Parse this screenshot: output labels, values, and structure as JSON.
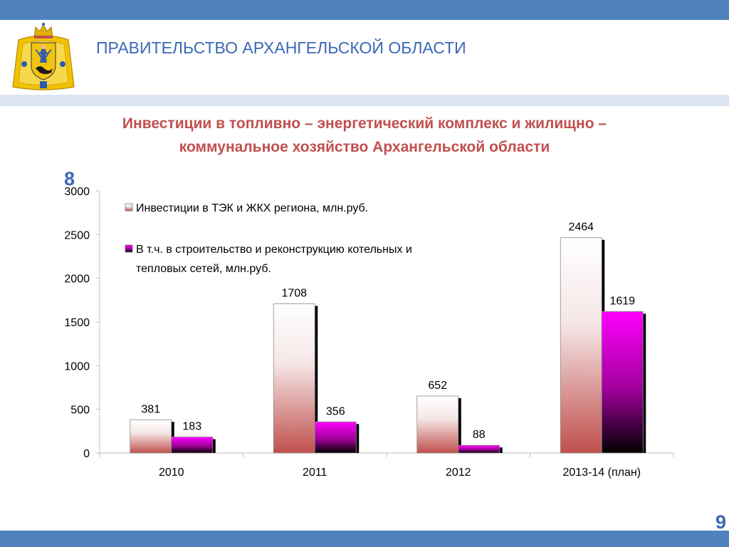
{
  "header": {
    "organization": "ПРАВИТЕЛЬСТВО АРХАНГЕЛЬСКОЙ ОБЛАСТИ",
    "emblem_icon": "coat-of-arms-icon"
  },
  "title": {
    "line1": "Инвестиции в топливно – энергетический комплекс и жилищно –",
    "line2": "коммунальное хозяйство Архангельской области"
  },
  "overlay_number": "8",
  "page_number": "9",
  "colors": {
    "top_bar": "#4f81bd",
    "band": "#dbe5f1",
    "title": "#c0504d",
    "org": "#3c68b7",
    "series1_top": "#ffffff",
    "series1_bottom": "#c0504d",
    "series2_top": "#ff00ff",
    "series2_bottom": "#000000"
  },
  "chart_data": {
    "type": "bar",
    "categories": [
      "2010",
      "2011",
      "2012",
      "2013-14 (план)"
    ],
    "series": [
      {
        "name": "Инвестиции в ТЭК и ЖКХ региона, млн.руб.",
        "values": [
          381,
          1708,
          652,
          2464
        ]
      },
      {
        "name": "В т.ч. в строительство и реконструкцию котельных и тепловых сетей, млн.руб.",
        "values": [
          183,
          356,
          88,
          1619
        ]
      }
    ],
    "data_labels": [
      [
        "381",
        "1708",
        "652",
        "2464"
      ],
      [
        "183",
        "356",
        "88",
        "1619"
      ]
    ],
    "ylim": [
      0,
      3000
    ],
    "yticks": [
      0,
      500,
      1000,
      1500,
      2000,
      2500,
      3000
    ],
    "ytick_labels": [
      "0",
      "500",
      "1000",
      "1500",
      "2000",
      "2500",
      "3000"
    ],
    "legend": {
      "placement": "top-left",
      "entries": [
        {
          "line1": "Инвестиции в ТЭК и ЖКХ региона, млн.руб.",
          "line2": ""
        },
        {
          "line1": "В т.ч. в строительство и реконструкцию котельных и",
          "line2": "тепловых сетей, млн.руб."
        }
      ]
    },
    "grid": false
  }
}
